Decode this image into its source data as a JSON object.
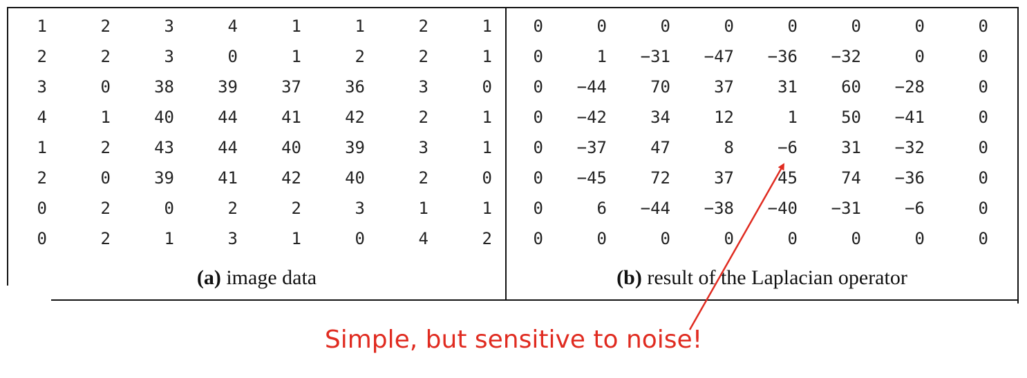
{
  "image_data": {
    "rows": [
      [
        "1",
        "2",
        "3",
        "4",
        "1",
        "1",
        "2",
        "1"
      ],
      [
        "2",
        "2",
        "3",
        "0",
        "1",
        "2",
        "2",
        "1"
      ],
      [
        "3",
        "0",
        "38",
        "39",
        "37",
        "36",
        "3",
        "0"
      ],
      [
        "4",
        "1",
        "40",
        "44",
        "41",
        "42",
        "2",
        "1"
      ],
      [
        "1",
        "2",
        "43",
        "44",
        "40",
        "39",
        "3",
        "1"
      ],
      [
        "2",
        "0",
        "39",
        "41",
        "42",
        "40",
        "2",
        "0"
      ],
      [
        "0",
        "2",
        "0",
        "2",
        "2",
        "3",
        "1",
        "1"
      ],
      [
        "0",
        "2",
        "1",
        "3",
        "1",
        "0",
        "4",
        "2"
      ]
    ],
    "caption_label": "(a)",
    "caption_text": "image data"
  },
  "laplacian_result": {
    "rows": [
      [
        "0",
        "0",
        "0",
        "0",
        "0",
        "0",
        "0",
        "0"
      ],
      [
        "0",
        "1",
        "−31",
        "−47",
        "−36",
        "−32",
        "0",
        "0"
      ],
      [
        "0",
        "−44",
        "70",
        "37",
        "31",
        "60",
        "−28",
        "0"
      ],
      [
        "0",
        "−42",
        "34",
        "12",
        "1",
        "50",
        "−41",
        "0"
      ],
      [
        "0",
        "−37",
        "47",
        "8",
        "−6",
        "31",
        "−32",
        "0"
      ],
      [
        "0",
        "−45",
        "72",
        "37",
        "45",
        "74",
        "−36",
        "0"
      ],
      [
        "0",
        "6",
        "−44",
        "−38",
        "−40",
        "−31",
        "−6",
        "0"
      ],
      [
        "0",
        "0",
        "0",
        "0",
        "0",
        "0",
        "0",
        "0"
      ]
    ],
    "caption_label": "(b)",
    "caption_text": "result of the Laplacian operator"
  },
  "annotation": {
    "text": "Simple, but sensitive to noise!",
    "color": "#e02b20",
    "points_to_value": "−6"
  }
}
